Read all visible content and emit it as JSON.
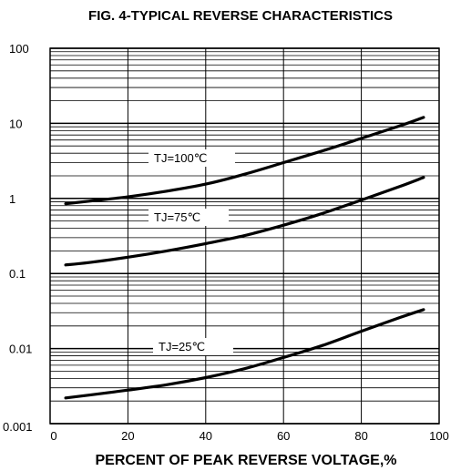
{
  "chart_data": {
    "type": "line",
    "title": "FIG. 4-TYPICAL REVERSE CHARACTERISTICS",
    "xlabel": "PERCENT OF PEAK REVERSE VOLTAGE,%",
    "ylabel": "",
    "xlim": [
      0,
      100
    ],
    "ylim": [
      0.001,
      100
    ],
    "yscale": "log",
    "grid": true,
    "x_ticks": [
      "0",
      "20",
      "40",
      "60",
      "80",
      "100"
    ],
    "y_ticks": [
      "100",
      "10",
      "1",
      "0.1",
      "0.01",
      "0.001"
    ],
    "series": [
      {
        "name": "TJ=100℃",
        "x": [
          4,
          10,
          20,
          30,
          40,
          50,
          60,
          70,
          80,
          90,
          96
        ],
        "y": [
          0.85,
          0.92,
          1.05,
          1.25,
          1.55,
          2.1,
          3.0,
          4.3,
          6.3,
          9.3,
          12
        ]
      },
      {
        "name": "TJ=75℃",
        "x": [
          4,
          10,
          20,
          30,
          40,
          50,
          60,
          70,
          80,
          90,
          96
        ],
        "y": [
          0.13,
          0.14,
          0.165,
          0.2,
          0.25,
          0.32,
          0.44,
          0.63,
          0.95,
          1.45,
          1.9
        ]
      },
      {
        "name": "TJ=25℃",
        "x": [
          4,
          10,
          20,
          30,
          40,
          50,
          60,
          70,
          80,
          90,
          96
        ],
        "y": [
          0.0022,
          0.0024,
          0.0028,
          0.0033,
          0.0041,
          0.0054,
          0.0076,
          0.011,
          0.017,
          0.026,
          0.033
        ]
      }
    ],
    "annotations": [
      "TJ=100℃",
      "TJ=75℃",
      "TJ=25℃"
    ]
  }
}
